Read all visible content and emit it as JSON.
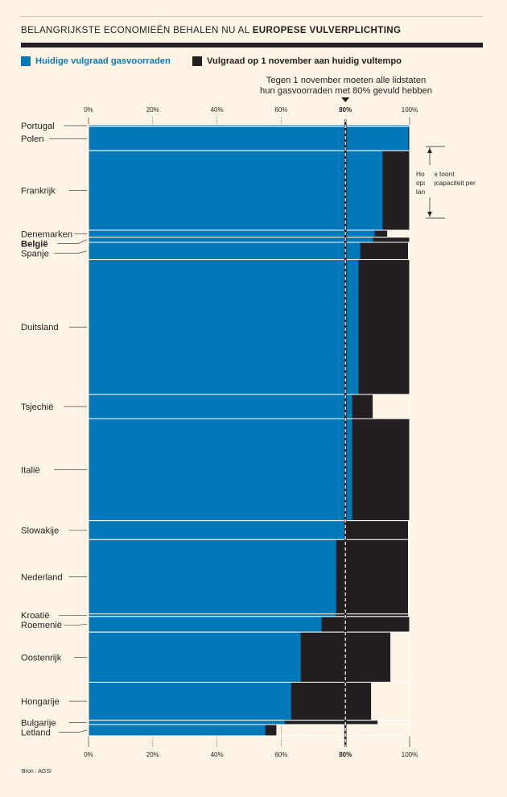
{
  "header": {
    "title_plain": "BELANGRIJKSTE ECONOMIEËN BEHALEN NU AL ",
    "title_bold": "EUROPESE VULVERPLICHTING"
  },
  "legend": {
    "current": "Huidige vulgraad gasvoorraden",
    "projected": "Vulgraad op 1 november aan huidig vultempo"
  },
  "annotation": {
    "target_line1": "Tegen 1 november moeten alle lidstaten",
    "target_line2": "hun gasvoorraden met 80% gevuld hebben",
    "height_note": "Hoogte toont opslagcapaciteit per land"
  },
  "source": "Bron : AGSI",
  "colors": {
    "current": "#0077b6",
    "projected": "#231f20",
    "background": "#fdf4e6",
    "target_line": "#ffffff"
  },
  "chart_data": {
    "type": "bar",
    "orientation": "horizontal",
    "xlim": [
      0,
      100
    ],
    "xticks": [
      "0%",
      "20%",
      "40%",
      "60%",
      "80%",
      "100%"
    ],
    "target": 80,
    "target_label": "80%",
    "bar_height_encodes": "opslagcapaciteit",
    "series": [
      {
        "name": "Huidige vulgraad gasvoorraden",
        "key": "current"
      },
      {
        "name": "Vulgraad op 1 november aan huidig vultempo",
        "key": "projected"
      }
    ],
    "countries": [
      {
        "name": "Portugal",
        "current": 100,
        "projected": 100,
        "capacity": 1,
        "bold": false
      },
      {
        "name": "Polen",
        "current": 99.5,
        "projected": 100,
        "capacity": 14,
        "bold": false
      },
      {
        "name": "Frankrijk",
        "current": 91.5,
        "projected": 100,
        "capacity": 46,
        "bold": false
      },
      {
        "name": "Denemarken",
        "current": 89,
        "projected": 93,
        "capacity": 4,
        "bold": false
      },
      {
        "name": "België",
        "current": 88.5,
        "projected": 100,
        "capacity": 3,
        "bold": true
      },
      {
        "name": "Spanje",
        "current": 84.5,
        "projected": 99.5,
        "capacity": 10,
        "bold": false
      },
      {
        "name": "Duitsland",
        "current": 84,
        "projected": 100,
        "capacity": 78,
        "bold": false
      },
      {
        "name": "Tsjechië",
        "current": 82,
        "projected": 88.5,
        "capacity": 14,
        "bold": false
      },
      {
        "name": "Italië",
        "current": 82,
        "projected": 100,
        "capacity": 59,
        "bold": false
      },
      {
        "name": "Slowakije",
        "current": 80,
        "projected": 99.5,
        "capacity": 11,
        "bold": false
      },
      {
        "name": "Nederland",
        "current": 77,
        "projected": 99.5,
        "capacity": 43,
        "bold": false
      },
      {
        "name": "Kroatië",
        "current": 77,
        "projected": 99.5,
        "capacity": 1.5,
        "bold": false
      },
      {
        "name": "Roemenië",
        "current": 72.5,
        "projected": 100,
        "capacity": 9,
        "bold": false
      },
      {
        "name": "Oostenrijk",
        "current": 66,
        "projected": 94,
        "capacity": 29,
        "bold": false
      },
      {
        "name": "Hongarije",
        "current": 63,
        "projected": 88,
        "capacity": 22,
        "bold": false
      },
      {
        "name": "Bulgarije",
        "current": 61,
        "projected": 90,
        "capacity": 2.5,
        "bold": false
      },
      {
        "name": "Letland",
        "current": 55,
        "projected": 58.5,
        "capacity": 6.5,
        "bold": false
      }
    ]
  }
}
